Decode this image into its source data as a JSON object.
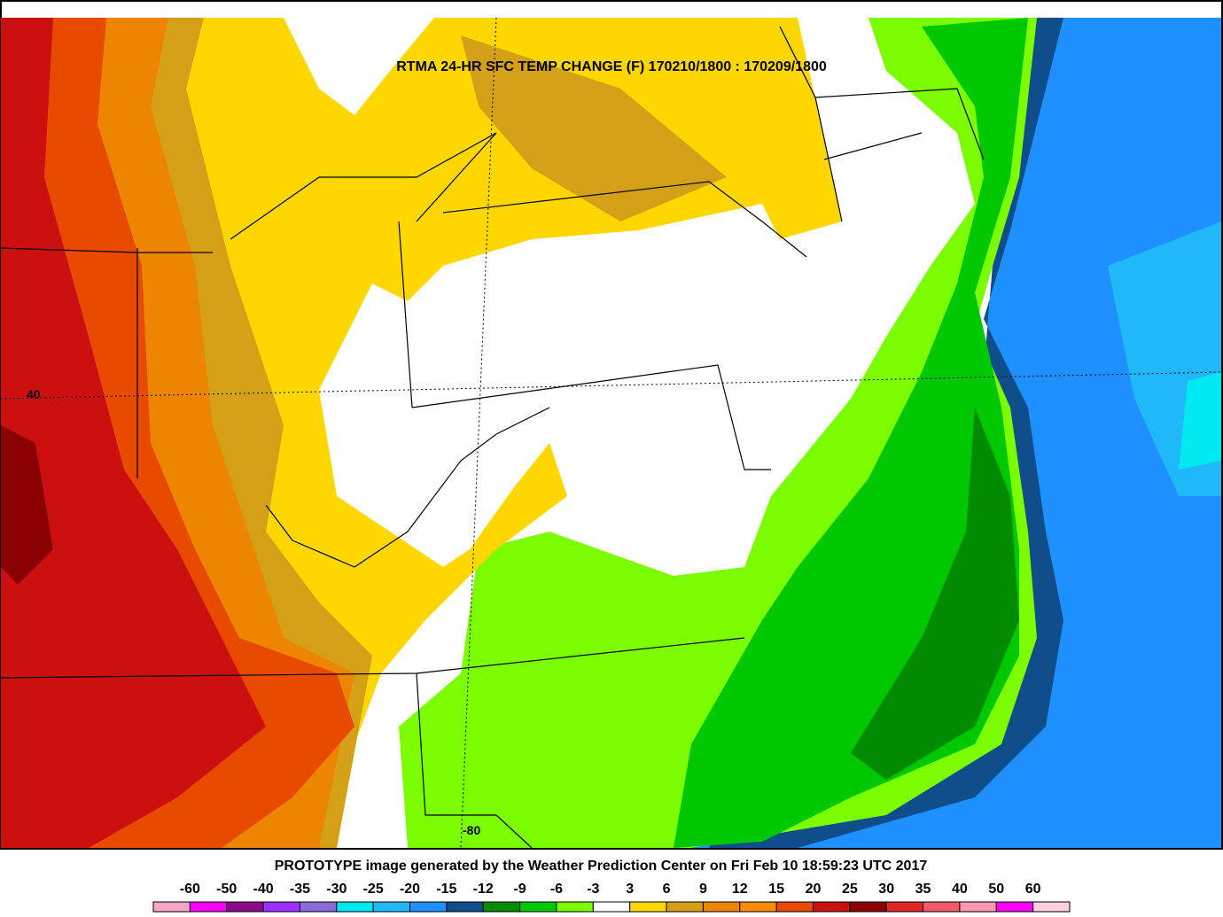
{
  "title": "RTMA 24-HR SFC TEMP CHANGE (F) 170210/1800 : 170209/1800",
  "map_labels": {
    "latitude": "40",
    "longitude": "-80"
  },
  "footer": "PROTOTYPE image generated by the Weather Prediction Center on Fri Feb 10 18:59:23 UTC 2017",
  "legend": {
    "labels": [
      -60,
      -50,
      -40,
      -35,
      -30,
      -25,
      -20,
      -15,
      -12,
      -9,
      -6,
      -3,
      3,
      6,
      9,
      12,
      15,
      20,
      25,
      30,
      35,
      40,
      50,
      60
    ],
    "colors": [
      "#f7a8c8",
      "#ff00ff",
      "#8a0a8a",
      "#9b30ff",
      "#8a6ad8",
      "#00e8f0",
      "#20b8f8",
      "#1e90ff",
      "#104e8b",
      "#008b00",
      "#00c800",
      "#7cfc00",
      "#ffffff",
      "#ffd700",
      "#d4a017",
      "#ee8500",
      "#ff8c00",
      "#e84a00",
      "#cc1010",
      "#8b0000",
      "#e02828",
      "#f05a6a",
      "#ff99b0",
      "#ff00ff",
      "#ffd0e0"
    ]
  }
}
